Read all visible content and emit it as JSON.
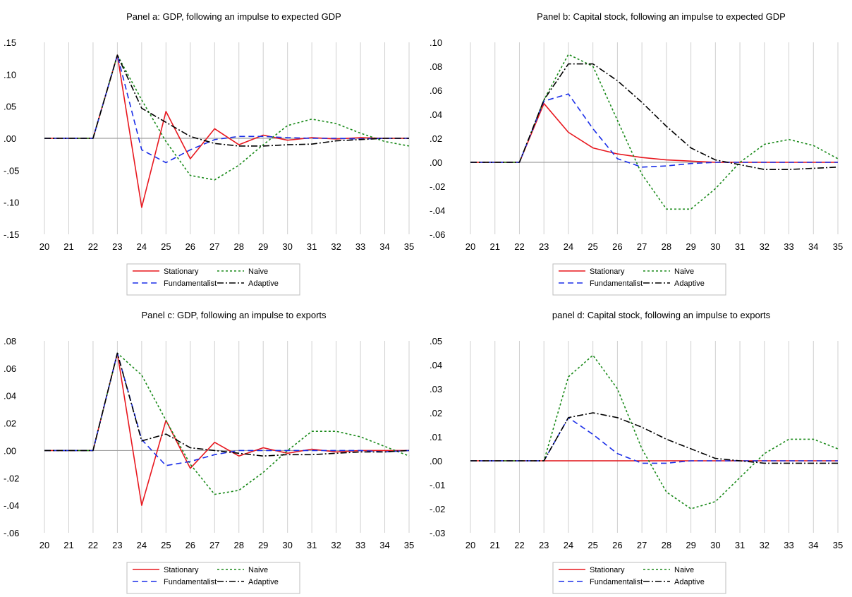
{
  "colors": {
    "stationary": "#e8181f",
    "fundamentalist": "#1a2ee8",
    "naive": "#1a8a1a",
    "adaptive": "#000000",
    "grid": "#d0d0d0",
    "zero": "#a0a0a0"
  },
  "legend": {
    "items": [
      {
        "key": "stationary",
        "label": "Stationary",
        "dash": "solid",
        "color": "#e8181f"
      },
      {
        "key": "naive",
        "label": "Naive",
        "dash": "dot",
        "color": "#1a8a1a"
      },
      {
        "key": "fundamentalist",
        "label": "Fundamentalist",
        "dash": "dash",
        "color": "#1a2ee8"
      },
      {
        "key": "adaptive",
        "label": "Adaptive",
        "dash": "dashdot",
        "color": "#000000"
      }
    ]
  },
  "chart_data": [
    {
      "type": "line",
      "title": "Panel a: GDP, following an impulse to expected GDP",
      "x": [
        20,
        21,
        22,
        23,
        24,
        25,
        26,
        27,
        28,
        29,
        30,
        31,
        32,
        33,
        34,
        35
      ],
      "ylim": [
        -0.15,
        0.15
      ],
      "yticks": [
        0.15,
        0.1,
        0.05,
        0.0,
        -0.05,
        -0.1,
        -0.15
      ],
      "ytick_labels": [
        ".15",
        ".10",
        ".05",
        ".00",
        "-.05",
        "-.10",
        "-.15"
      ],
      "grid": true,
      "legend_position": "bottom",
      "series": [
        {
          "key": "stationary",
          "name": "Stationary",
          "values": [
            0,
            0,
            0,
            0.13,
            -0.108,
            0.042,
            -0.032,
            0.015,
            -0.01,
            0.005,
            -0.003,
            0.001,
            -0.001,
            0.001,
            0,
            0
          ]
        },
        {
          "key": "naive",
          "name": "Naive",
          "values": [
            0,
            0,
            0,
            0.13,
            0.06,
            -0.005,
            -0.058,
            -0.065,
            -0.042,
            -0.01,
            0.02,
            0.03,
            0.023,
            0.008,
            -0.005,
            -0.012
          ]
        },
        {
          "key": "fundamentalist",
          "name": "Fundamentalist",
          "values": [
            0,
            0,
            0,
            0.13,
            -0.018,
            -0.038,
            -0.018,
            -0.002,
            0.003,
            0.003,
            0.001,
            0,
            0,
            -0.001,
            0,
            0
          ]
        },
        {
          "key": "adaptive",
          "name": "Adaptive",
          "values": [
            0,
            0,
            0,
            0.13,
            0.047,
            0.025,
            0.003,
            -0.008,
            -0.012,
            -0.012,
            -0.01,
            -0.009,
            -0.004,
            -0.002,
            0,
            0
          ]
        }
      ]
    },
    {
      "type": "line",
      "title": "Panel b: Capital stock, following an impulse to expected GDP",
      "x": [
        20,
        21,
        22,
        23,
        24,
        25,
        26,
        27,
        28,
        29,
        30,
        31,
        32,
        33,
        34,
        35
      ],
      "ylim": [
        -0.06,
        0.1
      ],
      "yticks": [
        0.1,
        0.08,
        0.06,
        0.04,
        0.02,
        0.0,
        -0.02,
        -0.04,
        -0.06
      ],
      "ytick_labels": [
        ".10",
        ".08",
        ".06",
        ".04",
        ".02",
        ".00",
        "-.02",
        "-.04",
        "-.06"
      ],
      "grid": true,
      "legend_position": "bottom",
      "series": [
        {
          "key": "stationary",
          "name": "Stationary",
          "values": [
            0,
            0,
            0,
            0.049,
            0.025,
            0.012,
            0.007,
            0.004,
            0.002,
            0.001,
            0,
            0,
            0,
            0,
            0,
            0
          ]
        },
        {
          "key": "naive",
          "name": "Naive",
          "values": [
            0,
            0,
            0,
            0.052,
            0.09,
            0.08,
            0.035,
            -0.01,
            -0.039,
            -0.039,
            -0.022,
            0,
            0.015,
            0.019,
            0.014,
            0.003
          ]
        },
        {
          "key": "fundamentalist",
          "name": "Fundamentalist",
          "values": [
            0,
            0,
            0,
            0.051,
            0.057,
            0.028,
            0.003,
            -0.004,
            -0.003,
            -0.001,
            0,
            0,
            0,
            0,
            0,
            0
          ]
        },
        {
          "key": "adaptive",
          "name": "Adaptive",
          "values": [
            0,
            0,
            0,
            0.052,
            0.082,
            0.082,
            0.068,
            0.05,
            0.03,
            0.012,
            0.002,
            -0.002,
            -0.006,
            -0.006,
            -0.005,
            -0.004
          ]
        }
      ]
    },
    {
      "type": "line",
      "title": "Panel c: GDP, following an impulse to exports",
      "x": [
        20,
        21,
        22,
        23,
        24,
        25,
        26,
        27,
        28,
        29,
        30,
        31,
        32,
        33,
        34,
        35
      ],
      "ylim": [
        -0.06,
        0.08
      ],
      "yticks": [
        0.08,
        0.06,
        0.04,
        0.02,
        0.0,
        -0.02,
        -0.04,
        -0.06
      ],
      "ytick_labels": [
        ".08",
        ".06",
        ".04",
        ".02",
        ".00",
        "-.02",
        "-.04",
        "-.06"
      ],
      "grid": true,
      "legend_position": "bottom",
      "series": [
        {
          "key": "stationary",
          "name": "Stationary",
          "values": [
            0,
            0,
            0,
            0.071,
            -0.04,
            0.022,
            -0.013,
            0.006,
            -0.004,
            0.002,
            -0.002,
            0.001,
            -0.001,
            0,
            0,
            0
          ]
        },
        {
          "key": "naive",
          "name": "Naive",
          "values": [
            0,
            0,
            0,
            0.071,
            0.055,
            0.022,
            -0.01,
            -0.032,
            -0.029,
            -0.016,
            0,
            0.014,
            0.014,
            0.01,
            0.003,
            -0.004
          ]
        },
        {
          "key": "fundamentalist",
          "name": "Fundamentalist",
          "values": [
            0,
            0,
            0,
            0.071,
            0.008,
            -0.011,
            -0.008,
            -0.003,
            0,
            0,
            0,
            0,
            0,
            0,
            -0.001,
            0
          ]
        },
        {
          "key": "adaptive",
          "name": "Adaptive",
          "values": [
            0,
            0,
            0,
            0.071,
            0.007,
            0.012,
            0.002,
            0,
            -0.002,
            -0.004,
            -0.003,
            -0.003,
            -0.002,
            -0.001,
            -0.001,
            0
          ]
        }
      ]
    },
    {
      "type": "line",
      "title": "panel d: Capital stock, following an impulse to exports",
      "x": [
        20,
        21,
        22,
        23,
        24,
        25,
        26,
        27,
        28,
        29,
        30,
        31,
        32,
        33,
        34,
        35
      ],
      "ylim": [
        -0.03,
        0.05
      ],
      "yticks": [
        0.05,
        0.04,
        0.03,
        0.02,
        0.01,
        0.0,
        -0.01,
        -0.02,
        -0.03
      ],
      "ytick_labels": [
        ".05",
        ".04",
        ".03",
        ".02",
        ".01",
        ".00",
        "-.01",
        "-.02",
        "-.03"
      ],
      "grid": true,
      "legend_position": "bottom",
      "series": [
        {
          "key": "stationary",
          "name": "Stationary",
          "values": [
            0,
            0,
            0,
            0,
            0,
            0,
            0,
            0,
            0,
            0,
            0,
            0,
            0,
            0,
            0,
            0
          ]
        },
        {
          "key": "naive",
          "name": "Naive",
          "values": [
            0,
            0,
            0,
            0,
            0.035,
            0.044,
            0.03,
            0.005,
            -0.013,
            -0.02,
            -0.017,
            -0.007,
            0.003,
            0.009,
            0.009,
            0.005
          ]
        },
        {
          "key": "fundamentalist",
          "name": "Fundamentalist",
          "values": [
            0,
            0,
            0,
            0,
            0.018,
            0.011,
            0.003,
            -0.001,
            -0.001,
            0,
            0,
            0,
            0,
            0,
            0,
            0
          ]
        },
        {
          "key": "adaptive",
          "name": "Adaptive",
          "values": [
            0,
            0,
            0,
            0,
            0.018,
            0.02,
            0.018,
            0.014,
            0.009,
            0.005,
            0.001,
            0,
            -0.001,
            -0.001,
            -0.001,
            -0.001
          ]
        }
      ]
    }
  ]
}
